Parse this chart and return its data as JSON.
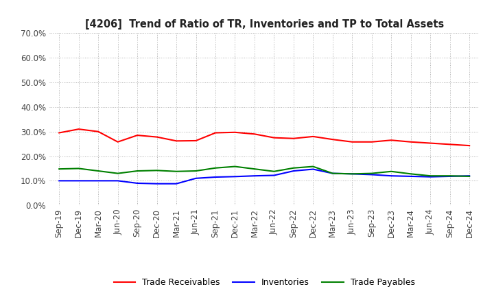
{
  "title": "[4206]  Trend of Ratio of TR, Inventories and TP to Total Assets",
  "labels": [
    "Sep-19",
    "Dec-19",
    "Mar-20",
    "Jun-20",
    "Sep-20",
    "Dec-20",
    "Mar-21",
    "Jun-21",
    "Sep-21",
    "Dec-21",
    "Mar-22",
    "Jun-22",
    "Sep-22",
    "Dec-22",
    "Mar-23",
    "Jun-23",
    "Sep-23",
    "Dec-23",
    "Mar-24",
    "Jun-24",
    "Sep-24",
    "Dec-24"
  ],
  "trade_receivables": [
    0.295,
    0.31,
    0.3,
    0.258,
    0.285,
    0.278,
    0.262,
    0.263,
    0.295,
    0.297,
    0.29,
    0.275,
    0.272,
    0.28,
    0.268,
    0.258,
    0.258,
    0.265,
    0.258,
    0.253,
    0.248,
    0.243
  ],
  "inventories": [
    0.1,
    0.1,
    0.1,
    0.1,
    0.09,
    0.088,
    0.088,
    0.11,
    0.115,
    0.117,
    0.12,
    0.122,
    0.14,
    0.147,
    0.13,
    0.128,
    0.125,
    0.12,
    0.118,
    0.116,
    0.118,
    0.12
  ],
  "trade_payables": [
    0.148,
    0.15,
    0.14,
    0.13,
    0.14,
    0.142,
    0.138,
    0.14,
    0.152,
    0.158,
    0.148,
    0.138,
    0.152,
    0.158,
    0.13,
    0.128,
    0.13,
    0.138,
    0.128,
    0.12,
    0.12,
    0.118
  ],
  "tr_color": "#ff0000",
  "inv_color": "#0000ff",
  "tp_color": "#008000",
  "ylim": [
    0.0,
    0.7
  ],
  "yticks": [
    0.0,
    0.1,
    0.2,
    0.3,
    0.4,
    0.5,
    0.6,
    0.7
  ],
  "background_color": "#ffffff",
  "grid_color": "#b0b0b0",
  "legend_labels": [
    "Trade Receivables",
    "Inventories",
    "Trade Payables"
  ],
  "title_fontsize": 10.5,
  "tick_fontsize": 8.5,
  "legend_fontsize": 9
}
